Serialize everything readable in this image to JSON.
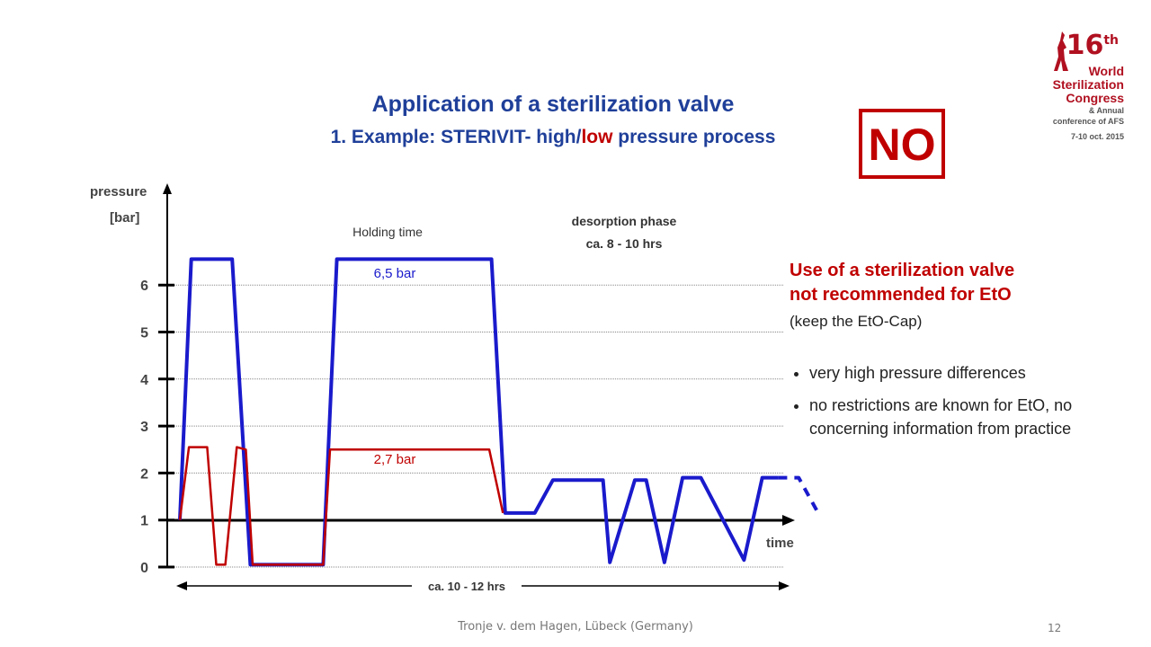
{
  "slide": {
    "title": "Application of a sterilization valve",
    "subtitle_prefix": "1. Example: STERIVIT- high/",
    "subtitle_low": "low",
    "subtitle_suffix": " pressure process",
    "no_label": "NO",
    "footer": "Tronje v. dem Hagen, Lübeck (Germany)",
    "page_number": "12"
  },
  "logo": {
    "number": "16",
    "suffix": "th",
    "line1": "World",
    "line2": "Sterilization",
    "line3": "Congress",
    "line4": "& Annual",
    "line5": "conference of AFS",
    "line6": "7-10 oct. 2015"
  },
  "panel": {
    "heading_line1": "Use of a sterilization valve",
    "heading_line2": "not recommended for EtO",
    "note": "(keep the EtO-Cap)",
    "bullets": [
      "very high pressure differences",
      "no restrictions are known for EtO, no concerning information from practice"
    ]
  },
  "colors": {
    "blue": "#1a1acc",
    "red": "#c00000",
    "title": "#1f3f99"
  },
  "chart_data": {
    "type": "line",
    "ylabel_line1": "pressure",
    "ylabel_line2": "[bar]",
    "xlabel": "time",
    "ylim": [
      0,
      6.5
    ],
    "yticks": [
      "0",
      "1",
      "2",
      "3",
      "4",
      "5",
      "6"
    ],
    "grid": true,
    "annotations": {
      "holding_time": "Holding time",
      "desorption_line1": "desorption phase",
      "desorption_line2": "ca. 8 - 10 hrs",
      "high_pressure": "6,5 bar",
      "low_pressure": "2,7 bar",
      "duration": "ca. 10 - 12 hrs"
    },
    "series": [
      {
        "color": "blue",
        "x": [
          0,
          0.5,
          2.3,
          3.1,
          6.3,
          6.9,
          13.7,
          14.3,
          15.6,
          16.4,
          18.6,
          18.9,
          20.0,
          20.5,
          21.3,
          22.1,
          22.9,
          24.8,
          25.6,
          26.3
        ],
        "y": [
          1.0,
          6.55,
          6.55,
          0.05,
          0.05,
          6.55,
          6.55,
          1.15,
          1.15,
          1.85,
          1.85,
          0.1,
          1.85,
          1.85,
          0.1,
          1.9,
          1.9,
          0.15,
          1.9,
          1.9
        ]
      },
      {
        "color": "blue",
        "style": "dashed",
        "x": [
          26.3,
          27.2,
          28.0
        ],
        "y": [
          1.9,
          1.9,
          1.2
        ]
      },
      {
        "color": "red",
        "x": [
          0,
          0.4,
          1.2,
          1.6,
          2.0,
          2.5,
          2.9,
          3.2,
          6.3,
          6.6,
          13.6,
          14.2
        ],
        "y": [
          1.0,
          2.55,
          2.55,
          0.05,
          0.05,
          2.55,
          2.5,
          0.05,
          0.05,
          2.5,
          2.5,
          1.15
        ]
      }
    ]
  }
}
